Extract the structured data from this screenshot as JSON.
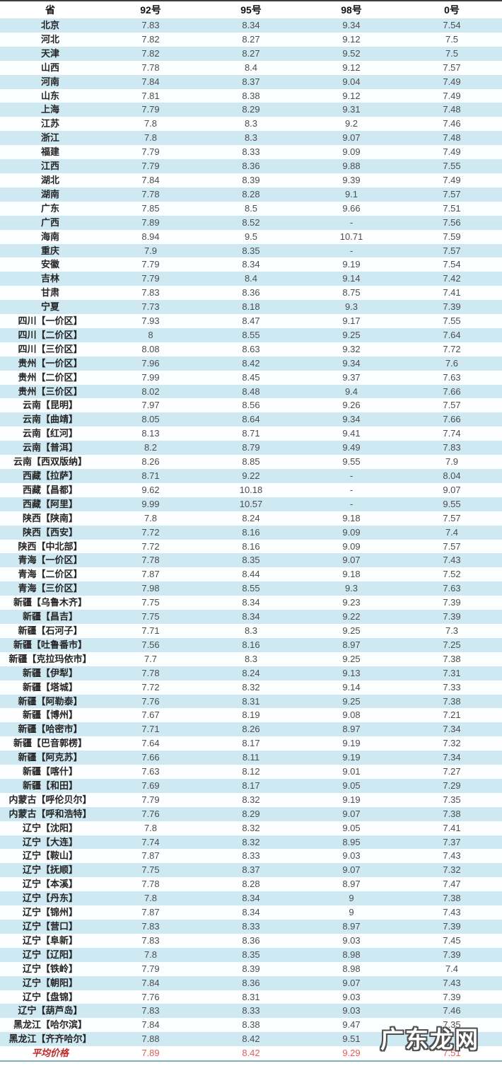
{
  "chart_data": {
    "type": "table",
    "title": "",
    "columns": [
      "省",
      "92号",
      "95号",
      "98号",
      "0号"
    ],
    "rows": [
      [
        "北京",
        "7.83",
        "8.34",
        "9.34",
        "7.54"
      ],
      [
        "河北",
        "7.82",
        "8.27",
        "9.12",
        "7.5"
      ],
      [
        "天津",
        "7.82",
        "8.27",
        "9.52",
        "7.5"
      ],
      [
        "山西",
        "7.78",
        "8.4",
        "9.12",
        "7.57"
      ],
      [
        "河南",
        "7.84",
        "8.37",
        "9.04",
        "7.49"
      ],
      [
        "山东",
        "7.81",
        "8.38",
        "9.12",
        "7.49"
      ],
      [
        "上海",
        "7.79",
        "8.29",
        "9.31",
        "7.48"
      ],
      [
        "江苏",
        "7.8",
        "8.3",
        "9.2",
        "7.46"
      ],
      [
        "浙江",
        "7.8",
        "8.3",
        "9.07",
        "7.48"
      ],
      [
        "福建",
        "7.79",
        "8.33",
        "9.09",
        "7.49"
      ],
      [
        "江西",
        "7.79",
        "8.36",
        "9.88",
        "7.55"
      ],
      [
        "湖北",
        "7.84",
        "8.39",
        "9.39",
        "7.49"
      ],
      [
        "湖南",
        "7.78",
        "8.28",
        "9.1",
        "7.57"
      ],
      [
        "广东",
        "7.85",
        "8.5",
        "9.66",
        "7.51"
      ],
      [
        "广西",
        "7.89",
        "8.52",
        "-",
        "7.56"
      ],
      [
        "海南",
        "8.94",
        "9.5",
        "10.71",
        "7.59"
      ],
      [
        "重庆",
        "7.9",
        "8.35",
        "-",
        "7.57"
      ],
      [
        "安徽",
        "7.79",
        "8.34",
        "9.19",
        "7.54"
      ],
      [
        "吉林",
        "7.79",
        "8.4",
        "9.14",
        "7.42"
      ],
      [
        "甘肃",
        "7.83",
        "8.36",
        "8.75",
        "7.41"
      ],
      [
        "宁夏",
        "7.73",
        "8.18",
        "9.3",
        "7.39"
      ],
      [
        "四川【一价区】",
        "7.93",
        "8.47",
        "9.17",
        "7.55"
      ],
      [
        "四川【二价区】",
        "8",
        "8.55",
        "9.25",
        "7.64"
      ],
      [
        "四川【三价区】",
        "8.08",
        "8.63",
        "9.32",
        "7.72"
      ],
      [
        "贵州【一价区】",
        "7.96",
        "8.42",
        "9.34",
        "7.6"
      ],
      [
        "贵州【二价区】",
        "7.99",
        "8.45",
        "9.37",
        "7.63"
      ],
      [
        "贵州【三价区】",
        "8.02",
        "8.48",
        "9.4",
        "7.66"
      ],
      [
        "云南【昆明】",
        "7.97",
        "8.56",
        "9.26",
        "7.57"
      ],
      [
        "云南【曲靖】",
        "8.05",
        "8.64",
        "9.34",
        "7.66"
      ],
      [
        "云南【红河】",
        "8.13",
        "8.71",
        "9.41",
        "7.74"
      ],
      [
        "云南【普洱】",
        "8.2",
        "8.79",
        "9.49",
        "7.83"
      ],
      [
        "云南【西双版纳】",
        "8.26",
        "8.85",
        "9.55",
        "7.9"
      ],
      [
        "西藏【拉萨】",
        "8.71",
        "9.22",
        "-",
        "8.04"
      ],
      [
        "西藏【昌都】",
        "9.62",
        "10.18",
        "-",
        "9.07"
      ],
      [
        "西藏【阿里】",
        "9.99",
        "10.57",
        "-",
        "9.55"
      ],
      [
        "陕西【陕南】",
        "7.8",
        "8.24",
        "9.18",
        "7.57"
      ],
      [
        "陕西【西安】",
        "7.72",
        "8.16",
        "9.09",
        "7.4"
      ],
      [
        "陕西【中北部】",
        "7.72",
        "8.16",
        "9.09",
        "7.57"
      ],
      [
        "青海【一价区】",
        "7.78",
        "8.35",
        "9.07",
        "7.43"
      ],
      [
        "青海【二价区】",
        "7.87",
        "8.44",
        "9.18",
        "7.52"
      ],
      [
        "青海【三价区】",
        "7.98",
        "8.55",
        "9.3",
        "7.63"
      ],
      [
        "新疆【乌鲁木齐】",
        "7.75",
        "8.34",
        "9.23",
        "7.39"
      ],
      [
        "新疆【昌吉】",
        "7.75",
        "8.34",
        "9.22",
        "7.39"
      ],
      [
        "新疆【石河子】",
        "7.71",
        "8.3",
        "9.25",
        "7.3"
      ],
      [
        "新疆【吐鲁番市】",
        "7.56",
        "8.16",
        "8.97",
        "7.25"
      ],
      [
        "新疆【克拉玛依市】",
        "7.7",
        "8.3",
        "9.25",
        "7.38"
      ],
      [
        "新疆【伊犁】",
        "7.78",
        "8.24",
        "9.13",
        "7.31"
      ],
      [
        "新疆【塔城】",
        "7.72",
        "8.32",
        "9.14",
        "7.33"
      ],
      [
        "新疆【阿勒泰】",
        "7.76",
        "8.31",
        "9.25",
        "7.38"
      ],
      [
        "新疆【博州】",
        "7.67",
        "8.19",
        "9.08",
        "7.21"
      ],
      [
        "新疆【哈密市】",
        "7.71",
        "8.26",
        "8.97",
        "7.34"
      ],
      [
        "新疆【巴音郭楞】",
        "7.64",
        "8.17",
        "9.19",
        "7.32"
      ],
      [
        "新疆【阿克苏】",
        "7.66",
        "8.11",
        "9.19",
        "7.34"
      ],
      [
        "新疆【喀什】",
        "7.63",
        "8.12",
        "9.01",
        "7.27"
      ],
      [
        "新疆【和田】",
        "7.69",
        "8.17",
        "9.05",
        "7.29"
      ],
      [
        "内蒙古【呼伦贝尔】",
        "7.79",
        "8.32",
        "9.19",
        "7.35"
      ],
      [
        "内蒙古【呼和浩特】",
        "7.76",
        "8.29",
        "9.07",
        "7.38"
      ],
      [
        "辽宁【沈阳】",
        "7.8",
        "8.32",
        "9.05",
        "7.41"
      ],
      [
        "辽宁【大连】",
        "7.74",
        "8.32",
        "8.95",
        "7.37"
      ],
      [
        "辽宁【鞍山】",
        "7.87",
        "8.33",
        "9.03",
        "7.43"
      ],
      [
        "辽宁【抚顺】",
        "7.75",
        "8.37",
        "9.07",
        "7.32"
      ],
      [
        "辽宁【本溪】",
        "7.78",
        "8.28",
        "8.97",
        "7.47"
      ],
      [
        "辽宁【丹东】",
        "7.8",
        "8.34",
        "9",
        "7.38"
      ],
      [
        "辽宁【锦州】",
        "7.87",
        "8.34",
        "9",
        "7.43"
      ],
      [
        "辽宁【营口】",
        "7.83",
        "8.33",
        "8.97",
        "7.39"
      ],
      [
        "辽宁【阜新】",
        "7.83",
        "8.36",
        "9.03",
        "7.45"
      ],
      [
        "辽宁【辽阳】",
        "7.8",
        "8.35",
        "8.98",
        "7.39"
      ],
      [
        "辽宁【铁岭】",
        "7.79",
        "8.39",
        "8.98",
        "7.4"
      ],
      [
        "辽宁【朝阳】",
        "7.84",
        "8.36",
        "9.07",
        "7.43"
      ],
      [
        "辽宁【盘锦】",
        "7.76",
        "8.31",
        "9.03",
        "7.39"
      ],
      [
        "辽宁【葫芦岛】",
        "7.83",
        "8.33",
        "9.03",
        "7.46"
      ],
      [
        "黑龙江【哈尔滨】",
        "7.84",
        "8.38",
        "9.47",
        "7.35"
      ],
      [
        "黑龙江【齐齐哈尔】",
        "7.88",
        "8.42",
        "9.51",
        ""
      ]
    ],
    "summary_row": [
      "平均价格",
      "7.89",
      "8.42",
      "9.29",
      "7.51"
    ],
    "layout": {
      "stripe_style": "alternating rows, odd rows light blue",
      "grid": false,
      "alignment": "center"
    }
  },
  "colors": {
    "stripe_blue": "#cfe9f2",
    "row_white": "#fcfeff",
    "top_border": "#3f3f3f",
    "bottom_border": "#7fb0c2",
    "summary_label": "#c42525",
    "summary_value": "#e25c5c",
    "watermark_fill": "#ffffff",
    "watermark_outline": "#4f4f4f"
  },
  "watermark": {
    "text": "广东龙网"
  }
}
